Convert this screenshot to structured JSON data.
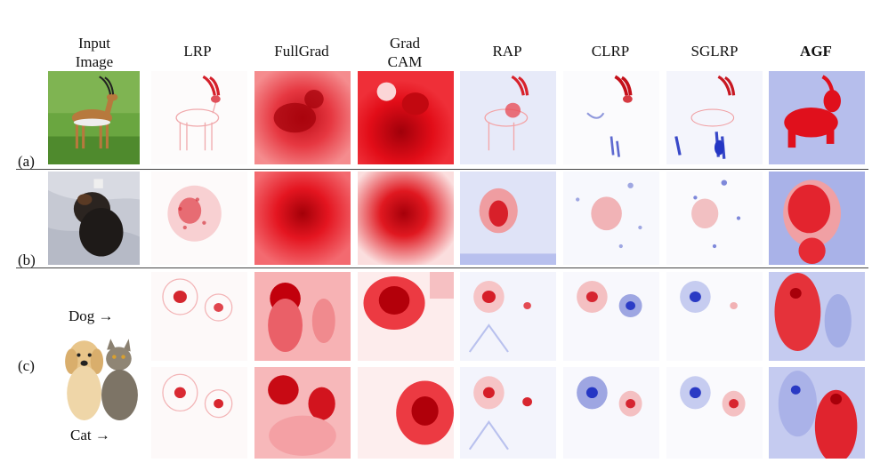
{
  "figure": {
    "columns": [
      {
        "id": "input",
        "label": "Input\nImage",
        "bold": false
      },
      {
        "id": "lrp",
        "label": "LRP",
        "bold": false
      },
      {
        "id": "fullgrad",
        "label": "FullGrad",
        "bold": false
      },
      {
        "id": "gradcam",
        "label": "Grad\nCAM",
        "bold": false
      },
      {
        "id": "rap",
        "label": "RAP",
        "bold": false
      },
      {
        "id": "clrp",
        "label": "CLRP",
        "bold": false
      },
      {
        "id": "sglrp",
        "label": "SGLRP",
        "bold": false
      },
      {
        "id": "agf",
        "label": "AGF",
        "bold": true
      }
    ],
    "rows": [
      {
        "label": "(a)",
        "subject": "gazelle"
      },
      {
        "label": "(b)",
        "subject": "dog on blanket"
      },
      {
        "label": "(c)",
        "subject": "dog and cat",
        "class_targets": [
          "Dog →",
          "Cat →"
        ]
      }
    ],
    "colors": {
      "positive": "#e0000a",
      "negative": "#2a3fd0",
      "grass": "#5f9b3a",
      "blanket": "#c9ccd6"
    }
  }
}
